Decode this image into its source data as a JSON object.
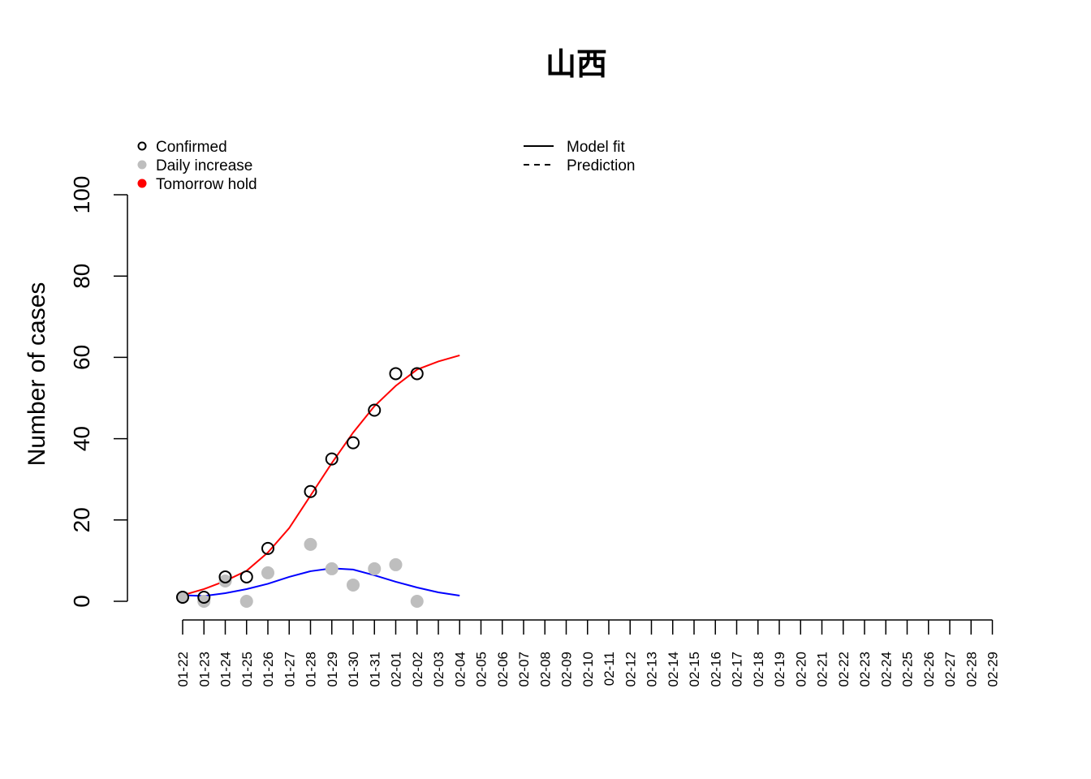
{
  "chart_data": {
    "type": "scatter",
    "title": "山西",
    "ylabel": "Number of cases",
    "xlabel": "",
    "ylim": [
      0,
      100
    ],
    "yticks": [
      0,
      20,
      40,
      60,
      80,
      100
    ],
    "x": [
      "01-22",
      "01-23",
      "01-24",
      "01-25",
      "01-26",
      "01-27",
      "01-28",
      "01-29",
      "01-30",
      "01-31",
      "02-01",
      "02-02",
      "02-03",
      "02-04",
      "02-05",
      "02-06",
      "02-07",
      "02-08",
      "02-09",
      "02-10",
      "02-11",
      "02-12",
      "02-13",
      "02-14",
      "02-15",
      "02-16",
      "02-17",
      "02-18",
      "02-19",
      "02-20",
      "02-21",
      "02-22",
      "02-23",
      "02-24",
      "02-25",
      "02-26",
      "02-27",
      "02-28",
      "02-29"
    ],
    "series": [
      {
        "name": "Confirmed",
        "style": "open-circle",
        "color": "#000000",
        "x": [
          "01-22",
          "01-23",
          "01-24",
          "01-25",
          "01-26",
          "01-28",
          "01-29",
          "01-30",
          "01-31",
          "02-01",
          "02-02"
        ],
        "values": [
          1,
          1,
          6,
          6,
          13,
          27,
          35,
          39,
          47,
          56,
          56
        ]
      },
      {
        "name": "Daily increase",
        "style": "filled-circle",
        "color": "#bebebe",
        "x": [
          "01-22",
          "01-23",
          "01-24",
          "01-25",
          "01-26",
          "01-28",
          "01-29",
          "01-30",
          "01-31",
          "02-01",
          "02-02"
        ],
        "values": [
          1,
          0,
          5,
          0,
          7,
          14,
          8,
          4,
          8,
          9,
          0
        ]
      },
      {
        "name": "Tomorrow hold",
        "style": "filled-circle",
        "color": "#ff0000",
        "x": [],
        "values": []
      },
      {
        "style": "line",
        "color": "#ff0000",
        "x": [
          "01-22",
          "01-23",
          "01-24",
          "01-25",
          "01-26",
          "01-27",
          "01-28",
          "01-29",
          "01-30",
          "01-31",
          "02-01",
          "02-02",
          "02-03",
          "02-04"
        ],
        "values": [
          1.5,
          3,
          5,
          7.5,
          12,
          18,
          26,
          34,
          41.5,
          48,
          53,
          57,
          59,
          60.5
        ]
      },
      {
        "style": "line",
        "color": "#0000ff",
        "x": [
          "01-22",
          "01-23",
          "01-24",
          "01-25",
          "01-26",
          "01-27",
          "01-28",
          "01-29",
          "01-30",
          "01-31",
          "02-01",
          "02-02",
          "02-03",
          "02-04"
        ],
        "values": [
          1.5,
          1.3,
          2,
          3,
          4.3,
          6,
          7.4,
          8.1,
          7.8,
          6.4,
          4.8,
          3.4,
          2.2,
          1.4
        ]
      }
    ],
    "legend": {
      "left": [
        {
          "label": "Confirmed",
          "marker": "open-circle",
          "color": "#000000"
        },
        {
          "label": "Daily increase",
          "marker": "filled-circle",
          "color": "#bebebe"
        },
        {
          "label": "Tomorrow hold",
          "marker": "filled-circle",
          "color": "#ff0000"
        }
      ],
      "right": [
        {
          "label": "Model fit",
          "line": "solid",
          "color": "#000000"
        },
        {
          "label": "Prediction",
          "line": "dashed",
          "color": "#000000"
        }
      ],
      "placement": "top"
    },
    "grid": false
  }
}
